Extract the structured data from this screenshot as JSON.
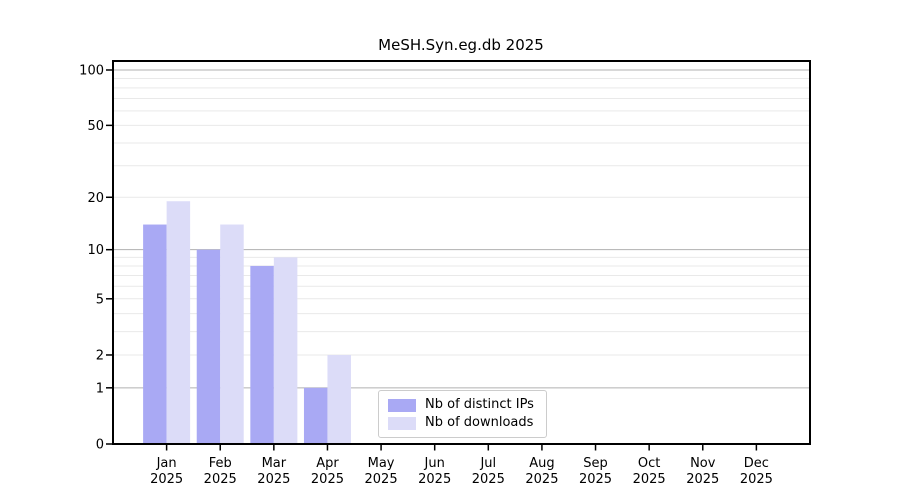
{
  "chart_data": {
    "type": "bar",
    "title": "MeSH.Syn.eg.db 2025",
    "year": "2025",
    "months": [
      "Jan",
      "Feb",
      "Mar",
      "Apr",
      "May",
      "Jun",
      "Jul",
      "Aug",
      "Sep",
      "Oct",
      "Nov",
      "Dec"
    ],
    "series": [
      {
        "name": "Nb of distinct IPs",
        "color": "#a9a9f4",
        "values": [
          14,
          10,
          8,
          1,
          0,
          0,
          0,
          0,
          0,
          0,
          0,
          0
        ]
      },
      {
        "name": "Nb of downloads",
        "color": "#dcdcf8",
        "values": [
          19,
          14,
          9,
          2,
          0,
          0,
          0,
          0,
          0,
          0,
          0,
          0
        ]
      }
    ],
    "y_scale": "log10(value+1)",
    "ylim": [
      0,
      111
    ],
    "y_ticks": [
      0,
      1,
      2,
      5,
      10,
      20,
      50,
      100
    ],
    "y_major_gridlines": [
      1,
      10,
      100
    ],
    "y_minor_gridlines": [
      2,
      3,
      4,
      5,
      6,
      7,
      8,
      9,
      20,
      30,
      40,
      50,
      60,
      70,
      80,
      90
    ],
    "grid": "on",
    "legend_position": "bottom-center",
    "colors": {
      "major_grid": "#b0b0b0",
      "minor_grid": "#e9e9e9",
      "axis": "#000000",
      "background": "#ffffff"
    }
  }
}
